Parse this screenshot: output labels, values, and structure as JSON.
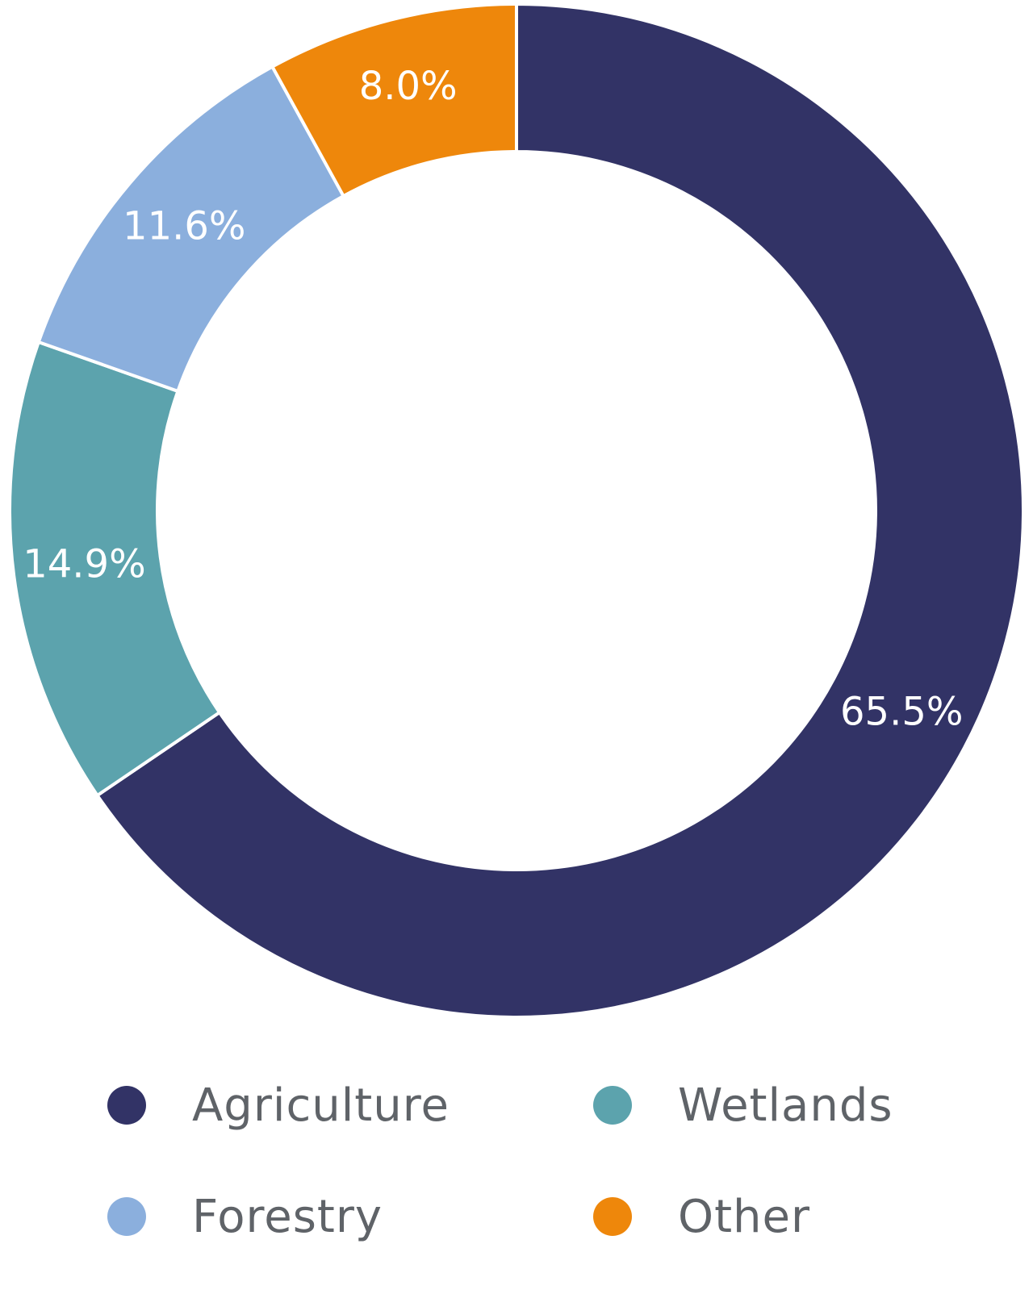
{
  "chart_data": {
    "type": "pie",
    "donut": true,
    "title": "",
    "categories": [
      "Agriculture",
      "Wetlands",
      "Forestry",
      "Other"
    ],
    "values": [
      65.5,
      14.9,
      11.6,
      8.0
    ],
    "value_labels": [
      "65.5%",
      "14.9%",
      "11.6%",
      "8.0%"
    ],
    "colors": [
      "#323366",
      "#5ca3ad",
      "#8bafdd",
      "#ee870b"
    ],
    "legend_position": "bottom",
    "start": "top",
    "direction": "clockwise"
  },
  "legend": {
    "items": [
      {
        "label": "Agriculture",
        "color": "#323366"
      },
      {
        "label": "Wetlands",
        "color": "#5ca3ad"
      },
      {
        "label": "Forestry",
        "color": "#8bafdd"
      },
      {
        "label": "Other",
        "color": "#ee870b"
      }
    ]
  }
}
